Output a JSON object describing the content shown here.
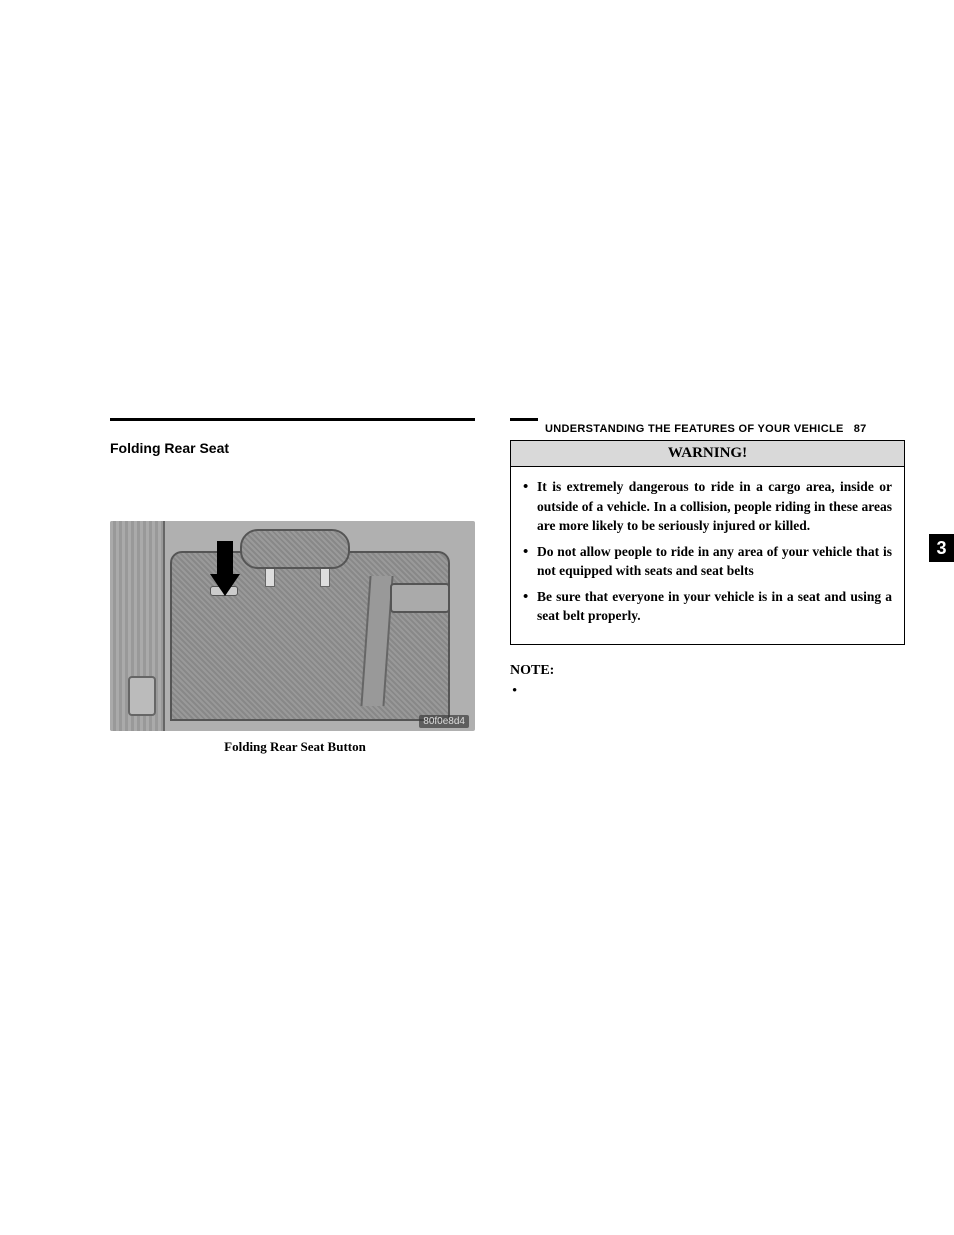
{
  "header": {
    "chapter_title": "UNDERSTANDING THE FEATURES OF YOUR VEHICLE",
    "page_number": "87",
    "section_tab": "3"
  },
  "left": {
    "section_title": "Folding Rear Seat",
    "figure_caption": "Folding Rear Seat Button",
    "image_id": "80f0e8d4"
  },
  "right": {
    "warning_title": "WARNING!",
    "warning_items": [
      "It is extremely dangerous to ride in a cargo area, inside or outside of a vehicle. In a collision, people riding in these areas are more likely to be seriously injured or killed.",
      "Do not allow people to ride in any area of your vehicle that is not equipped with seats and seat belts",
      "Be sure that everyone in your vehicle is in a seat and using a seat belt properly."
    ],
    "note_label": "NOTE:"
  },
  "style": {
    "colors": {
      "page_bg": "#ffffff",
      "rule": "#000000",
      "warning_header_bg": "#d9d9d9",
      "tab_bg": "#000000",
      "tab_fg": "#ffffff"
    },
    "fonts": {
      "body": "Georgia, serif",
      "ui": "Arial, Helvetica, sans-serif"
    }
  }
}
